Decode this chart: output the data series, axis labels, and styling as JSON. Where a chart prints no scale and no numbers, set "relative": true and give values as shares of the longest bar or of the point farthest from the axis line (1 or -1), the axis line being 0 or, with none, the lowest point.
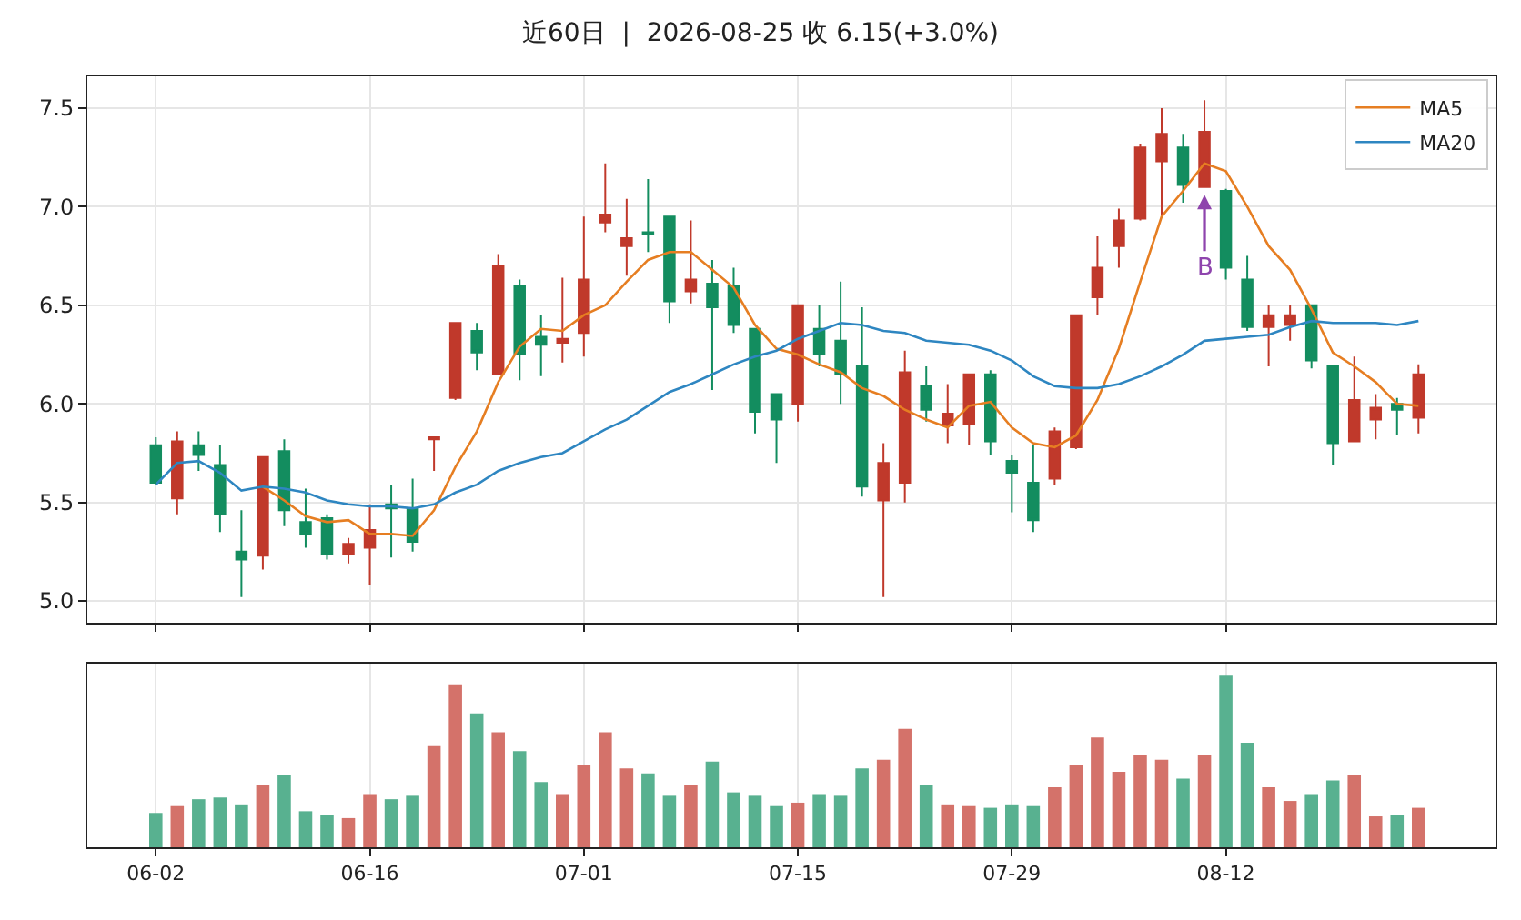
{
  "chart_data": [
    {
      "type": "candlestick",
      "title": "近60日  |  2026-08-25 收 6.15(+3.0%)",
      "categories": [
        null,
        null,
        null,
        null,
        null,
        null,
        null,
        null,
        null,
        null,
        null,
        null,
        null,
        null,
        null,
        null,
        null,
        null,
        null,
        null,
        null,
        null,
        null,
        null,
        null,
        null,
        null,
        null,
        null,
        null,
        null,
        null,
        null,
        null,
        null,
        null,
        null,
        null,
        null,
        null,
        null,
        null,
        null,
        null,
        null,
        null,
        null,
        null,
        null,
        null,
        null,
        null,
        null,
        null,
        null,
        null,
        null,
        null,
        null,
        null
      ],
      "ohlc": [
        [
          5.79,
          5.83,
          5.59,
          5.6
        ],
        [
          5.52,
          5.86,
          5.44,
          5.81
        ],
        [
          5.79,
          5.86,
          5.66,
          5.74
        ],
        [
          5.69,
          5.79,
          5.35,
          5.44
        ],
        [
          5.25,
          5.46,
          5.02,
          5.21
        ],
        [
          5.23,
          5.73,
          5.16,
          5.73
        ],
        [
          5.76,
          5.82,
          5.38,
          5.46
        ],
        [
          5.4,
          5.57,
          5.27,
          5.34
        ],
        [
          5.42,
          5.44,
          5.21,
          5.24
        ],
        [
          5.24,
          5.32,
          5.19,
          5.29
        ],
        [
          5.27,
          5.49,
          5.08,
          5.36
        ],
        [
          5.49,
          5.59,
          5.22,
          5.47
        ],
        [
          5.47,
          5.62,
          5.25,
          5.3
        ],
        [
          5.82,
          5.83,
          5.66,
          5.83
        ],
        [
          6.03,
          6.41,
          6.02,
          6.41
        ],
        [
          6.37,
          6.41,
          6.17,
          6.26
        ],
        [
          6.15,
          6.76,
          6.15,
          6.7
        ],
        [
          6.6,
          6.63,
          6.12,
          6.25
        ],
        [
          6.34,
          6.45,
          6.14,
          6.3
        ],
        [
          6.31,
          6.64,
          6.21,
          6.33
        ],
        [
          6.36,
          6.95,
          6.24,
          6.63
        ],
        [
          6.92,
          7.22,
          6.87,
          6.96
        ],
        [
          6.8,
          7.04,
          6.65,
          6.84
        ],
        [
          6.87,
          7.14,
          6.77,
          6.86
        ],
        [
          6.95,
          6.95,
          6.41,
          6.52
        ],
        [
          6.57,
          6.93,
          6.51,
          6.63
        ],
        [
          6.61,
          6.73,
          6.07,
          6.49
        ],
        [
          6.6,
          6.69,
          6.36,
          6.4
        ],
        [
          6.38,
          6.38,
          5.85,
          5.96
        ],
        [
          6.05,
          6.05,
          5.7,
          5.92
        ],
        [
          6.0,
          6.5,
          5.91,
          6.5
        ],
        [
          6.38,
          6.5,
          6.19,
          6.25
        ],
        [
          6.32,
          6.62,
          6.0,
          6.15
        ],
        [
          6.19,
          6.49,
          5.53,
          5.58
        ],
        [
          5.51,
          5.8,
          5.02,
          5.7
        ],
        [
          5.6,
          6.27,
          5.5,
          6.16
        ],
        [
          6.09,
          6.19,
          5.91,
          5.97
        ],
        [
          5.89,
          6.1,
          5.8,
          5.95
        ],
        [
          5.9,
          6.15,
          5.79,
          6.15
        ],
        [
          6.15,
          6.17,
          5.74,
          5.81
        ],
        [
          5.71,
          5.74,
          5.45,
          5.65
        ],
        [
          5.6,
          5.79,
          5.35,
          5.41
        ],
        [
          5.62,
          5.88,
          5.59,
          5.86
        ],
        [
          5.78,
          6.45,
          5.77,
          6.45
        ],
        [
          6.54,
          6.85,
          6.45,
          6.69
        ],
        [
          6.8,
          6.99,
          6.69,
          6.93
        ],
        [
          6.94,
          7.32,
          6.93,
          7.3
        ],
        [
          7.23,
          7.5,
          6.96,
          7.37
        ],
        [
          7.3,
          7.37,
          7.02,
          7.11
        ],
        [
          7.1,
          7.54,
          7.1,
          7.38
        ],
        [
          7.08,
          7.09,
          6.63,
          6.69
        ],
        [
          6.63,
          6.75,
          6.37,
          6.39
        ],
        [
          6.39,
          6.5,
          6.19,
          6.45
        ],
        [
          6.4,
          6.5,
          6.32,
          6.45
        ],
        [
          6.5,
          6.5,
          6.18,
          6.22
        ],
        [
          6.19,
          6.19,
          5.69,
          5.8
        ],
        [
          5.81,
          6.24,
          5.81,
          6.02
        ],
        [
          5.92,
          6.05,
          5.82,
          5.98
        ],
        [
          6.0,
          6.03,
          5.84,
          5.97
        ],
        [
          5.93,
          6.2,
          5.85,
          6.15
        ]
      ],
      "series": [
        {
          "type": "line",
          "name": "MA5",
          "color": "#e67e22",
          "values": [
            null,
            null,
            null,
            null,
            null,
            5.58,
            5.51,
            5.43,
            5.4,
            5.41,
            5.34,
            5.34,
            5.33,
            5.46,
            5.68,
            5.86,
            6.11,
            6.29,
            6.38,
            6.37,
            6.45,
            6.5,
            6.62,
            6.73,
            6.77,
            6.77,
            6.68,
            6.59,
            6.4,
            6.28,
            6.25,
            6.2,
            6.16,
            6.08,
            6.04,
            5.97,
            5.92,
            5.88,
            5.99,
            6.01,
            5.88,
            5.8,
            5.78,
            5.84,
            6.02,
            6.28,
            6.62,
            6.95,
            7.08,
            7.22,
            7.18,
            7.0,
            6.8,
            6.68,
            6.48,
            6.26,
            6.19,
            6.11,
            6.0,
            5.99
          ]
        },
        {
          "type": "line",
          "name": "MA20",
          "color": "#2e86c1",
          "values": [
            5.59,
            5.7,
            5.71,
            5.65,
            5.56,
            5.58,
            5.57,
            5.55,
            5.51,
            5.49,
            5.48,
            5.48,
            5.47,
            5.49,
            5.55,
            5.59,
            5.66,
            5.7,
            5.73,
            5.75,
            5.81,
            5.87,
            5.92,
            5.99,
            6.06,
            6.1,
            6.15,
            6.2,
            6.24,
            6.27,
            6.33,
            6.37,
            6.41,
            6.4,
            6.37,
            6.36,
            6.32,
            6.31,
            6.3,
            6.27,
            6.22,
            6.14,
            6.09,
            6.08,
            6.08,
            6.1,
            6.14,
            6.19,
            6.25,
            6.32,
            6.33,
            6.34,
            6.35,
            6.39,
            6.42,
            6.41,
            6.41,
            6.41,
            6.4,
            6.42
          ]
        }
      ],
      "ylim": [
        4.89,
        7.66
      ],
      "yticks": [
        {
          "value": 5,
          "label": "5.0"
        },
        5.5,
        {
          "value": 6,
          "label": "6.0"
        },
        6.5,
        {
          "value": 7,
          "label": "7.0"
        },
        7.5
      ],
      "annotations": [
        {
          "text": "B",
          "y": 7.06
        }
      ],
      "grid": true,
      "legend": "top right",
      "tick_labels": "y"
    },
    {
      "type": "bar",
      "relative": true,
      "categories": [
        "06-02",
        null,
        null,
        null,
        null,
        null,
        null,
        null,
        null,
        null,
        "06-16",
        null,
        null,
        null,
        null,
        null,
        null,
        null,
        null,
        null,
        "07-01",
        null,
        null,
        null,
        null,
        null,
        null,
        null,
        null,
        null,
        "07-15",
        null,
        null,
        null,
        null,
        null,
        null,
        null,
        null,
        null,
        "07-29",
        null,
        null,
        null,
        null,
        null,
        null,
        null,
        null,
        null,
        "08-12",
        null,
        null,
        null,
        null,
        null,
        null,
        null,
        null,
        null
      ],
      "values": [
        0.2,
        0.24,
        0.28,
        0.29,
        0.25,
        0.36,
        0.42,
        0.21,
        0.19,
        0.17,
        0.31,
        0.28,
        0.3,
        0.59,
        0.95,
        0.78,
        0.67,
        0.56,
        0.38,
        0.31,
        0.48,
        0.67,
        0.46,
        0.43,
        0.3,
        0.36,
        0.5,
        0.32,
        0.3,
        0.24,
        0.26,
        0.31,
        0.3,
        0.46,
        0.51,
        0.69,
        0.36,
        0.25,
        0.24,
        0.23,
        0.25,
        0.24,
        0.35,
        0.48,
        0.64,
        0.44,
        0.54,
        0.51,
        0.4,
        0.54,
        1,
        0.61,
        0.35,
        0.27,
        0.31,
        0.39,
        0.42,
        0.18,
        0.19,
        0.23
      ],
      "colors": [
        "#58b190",
        "#d4726a",
        "#58b190",
        "#58b190",
        "#58b190",
        "#d4726a",
        "#58b190",
        "#58b190",
        "#58b190",
        "#d4726a",
        "#d4726a",
        "#58b190",
        "#58b190",
        "#d4726a",
        "#d4726a",
        "#58b190",
        "#d4726a",
        "#58b190",
        "#58b190",
        "#d4726a",
        "#d4726a",
        "#d4726a",
        "#d4726a",
        "#58b190",
        "#58b190",
        "#d4726a",
        "#58b190",
        "#58b190",
        "#58b190",
        "#58b190",
        "#d4726a",
        "#58b190",
        "#58b190",
        "#58b190",
        "#d4726a",
        "#d4726a",
        "#58b190",
        "#d4726a",
        "#d4726a",
        "#58b190",
        "#58b190",
        "#58b190",
        "#d4726a",
        "#d4726a",
        "#d4726a",
        "#d4726a",
        "#d4726a",
        "#d4726a",
        "#58b190",
        "#d4726a",
        "#58b190",
        "#58b190",
        "#d4726a",
        "#d4726a",
        "#58b190",
        "#58b190",
        "#d4726a",
        "#d4726a",
        "#58b190",
        "#d4726a"
      ],
      "grid": "x",
      "tick_labels": "x"
    }
  ]
}
